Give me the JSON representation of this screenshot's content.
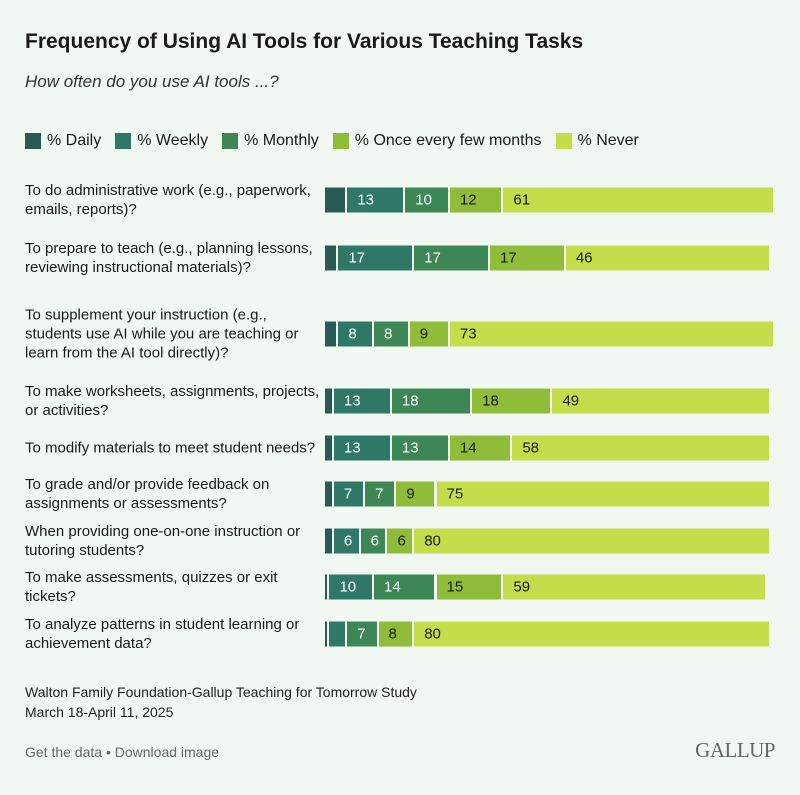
{
  "chart_data": {
    "type": "bar",
    "orientation": "horizontal-stacked",
    "title": "Frequency of Using AI Tools for Various Teaching Tasks",
    "subtitle": "How often do you use AI tools ...?",
    "xlim": [
      0,
      100
    ],
    "grid": false,
    "legend_placement": "top",
    "series": [
      {
        "name": "% Daily",
        "color": "#2a5a55",
        "labeled": false
      },
      {
        "name": "% Weekly",
        "color": "#2f7868",
        "labeled": true
      },
      {
        "name": "% Monthly",
        "color": "#3d8756",
        "labeled": true
      },
      {
        "name": "% Once every few months",
        "color": "#8fbd3a",
        "labeled": true
      },
      {
        "name": "% Never",
        "color": "#c3dd4b",
        "labeled": true
      }
    ],
    "categories": [
      {
        "label": "To do administrative work (e.g., paperwork, emails, reports)?",
        "values": [
          5,
          13,
          10,
          12,
          61
        ]
      },
      {
        "label": "To prepare to teach (e.g., planning lessons, reviewing instructional materials)?",
        "values": [
          3,
          17,
          17,
          17,
          46
        ]
      },
      {
        "label": "To supplement your instruction (e.g., students use AI while you are teaching or learn from the AI tool directly)?",
        "values": [
          3,
          8,
          8,
          9,
          73
        ]
      },
      {
        "label": "To make worksheets, assignments, projects, or activities?",
        "values": [
          2,
          13,
          18,
          18,
          49
        ]
      },
      {
        "label": "To modify materials to meet student needs?",
        "values": [
          2,
          13,
          13,
          14,
          58
        ]
      },
      {
        "label": "To grade and/or provide feedback on assignments or assessments?",
        "values": [
          2,
          7,
          7,
          9,
          75
        ]
      },
      {
        "label": "When providing one-on-one instruction or tutoring students?",
        "values": [
          2,
          6,
          6,
          6,
          80
        ]
      },
      {
        "label": "To make assessments, quizzes or exit tickets?",
        "values": [
          1,
          10,
          14,
          15,
          59
        ]
      },
      {
        "label": "To analyze patterns in student learning or achievement data?",
        "values": [
          1,
          4,
          7,
          8,
          80
        ],
        "hidden_labels": [
          1
        ]
      }
    ]
  },
  "footer": {
    "source": "Walton Family Foundation-Gallup Teaching for Tomorrow Study",
    "dates": "March 18-April 11, 2025",
    "get_data": "Get the data",
    "separator": " • ",
    "download": "Download image",
    "logo": "GALLUP"
  }
}
